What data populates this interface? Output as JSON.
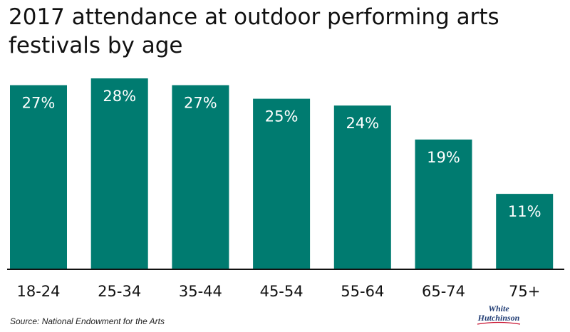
{
  "chart_title": "2017 attendance at outdoor performing arts festivals by age",
  "source": "Source: National Endowment for the Arts",
  "logo": {
    "line1": "White",
    "line2": "Hutchinson"
  },
  "colors": {
    "bar": "#007b70",
    "label": "#ffffff",
    "axis": "#111111"
  },
  "chart_data": {
    "type": "bar",
    "categories": [
      "18-24",
      "25-34",
      "35-44",
      "45-54",
      "55-64",
      "65-74",
      "75+"
    ],
    "values": [
      27,
      28,
      27,
      25,
      24,
      19,
      11
    ],
    "data_labels": [
      "27%",
      "28%",
      "27%",
      "25%",
      "24%",
      "19%",
      "11%"
    ],
    "title": "2017 attendance at outdoor performing arts festivals by age",
    "xlabel": "",
    "ylabel": "",
    "ylim": [
      0,
      28
    ],
    "grid": false,
    "legend": "none"
  }
}
